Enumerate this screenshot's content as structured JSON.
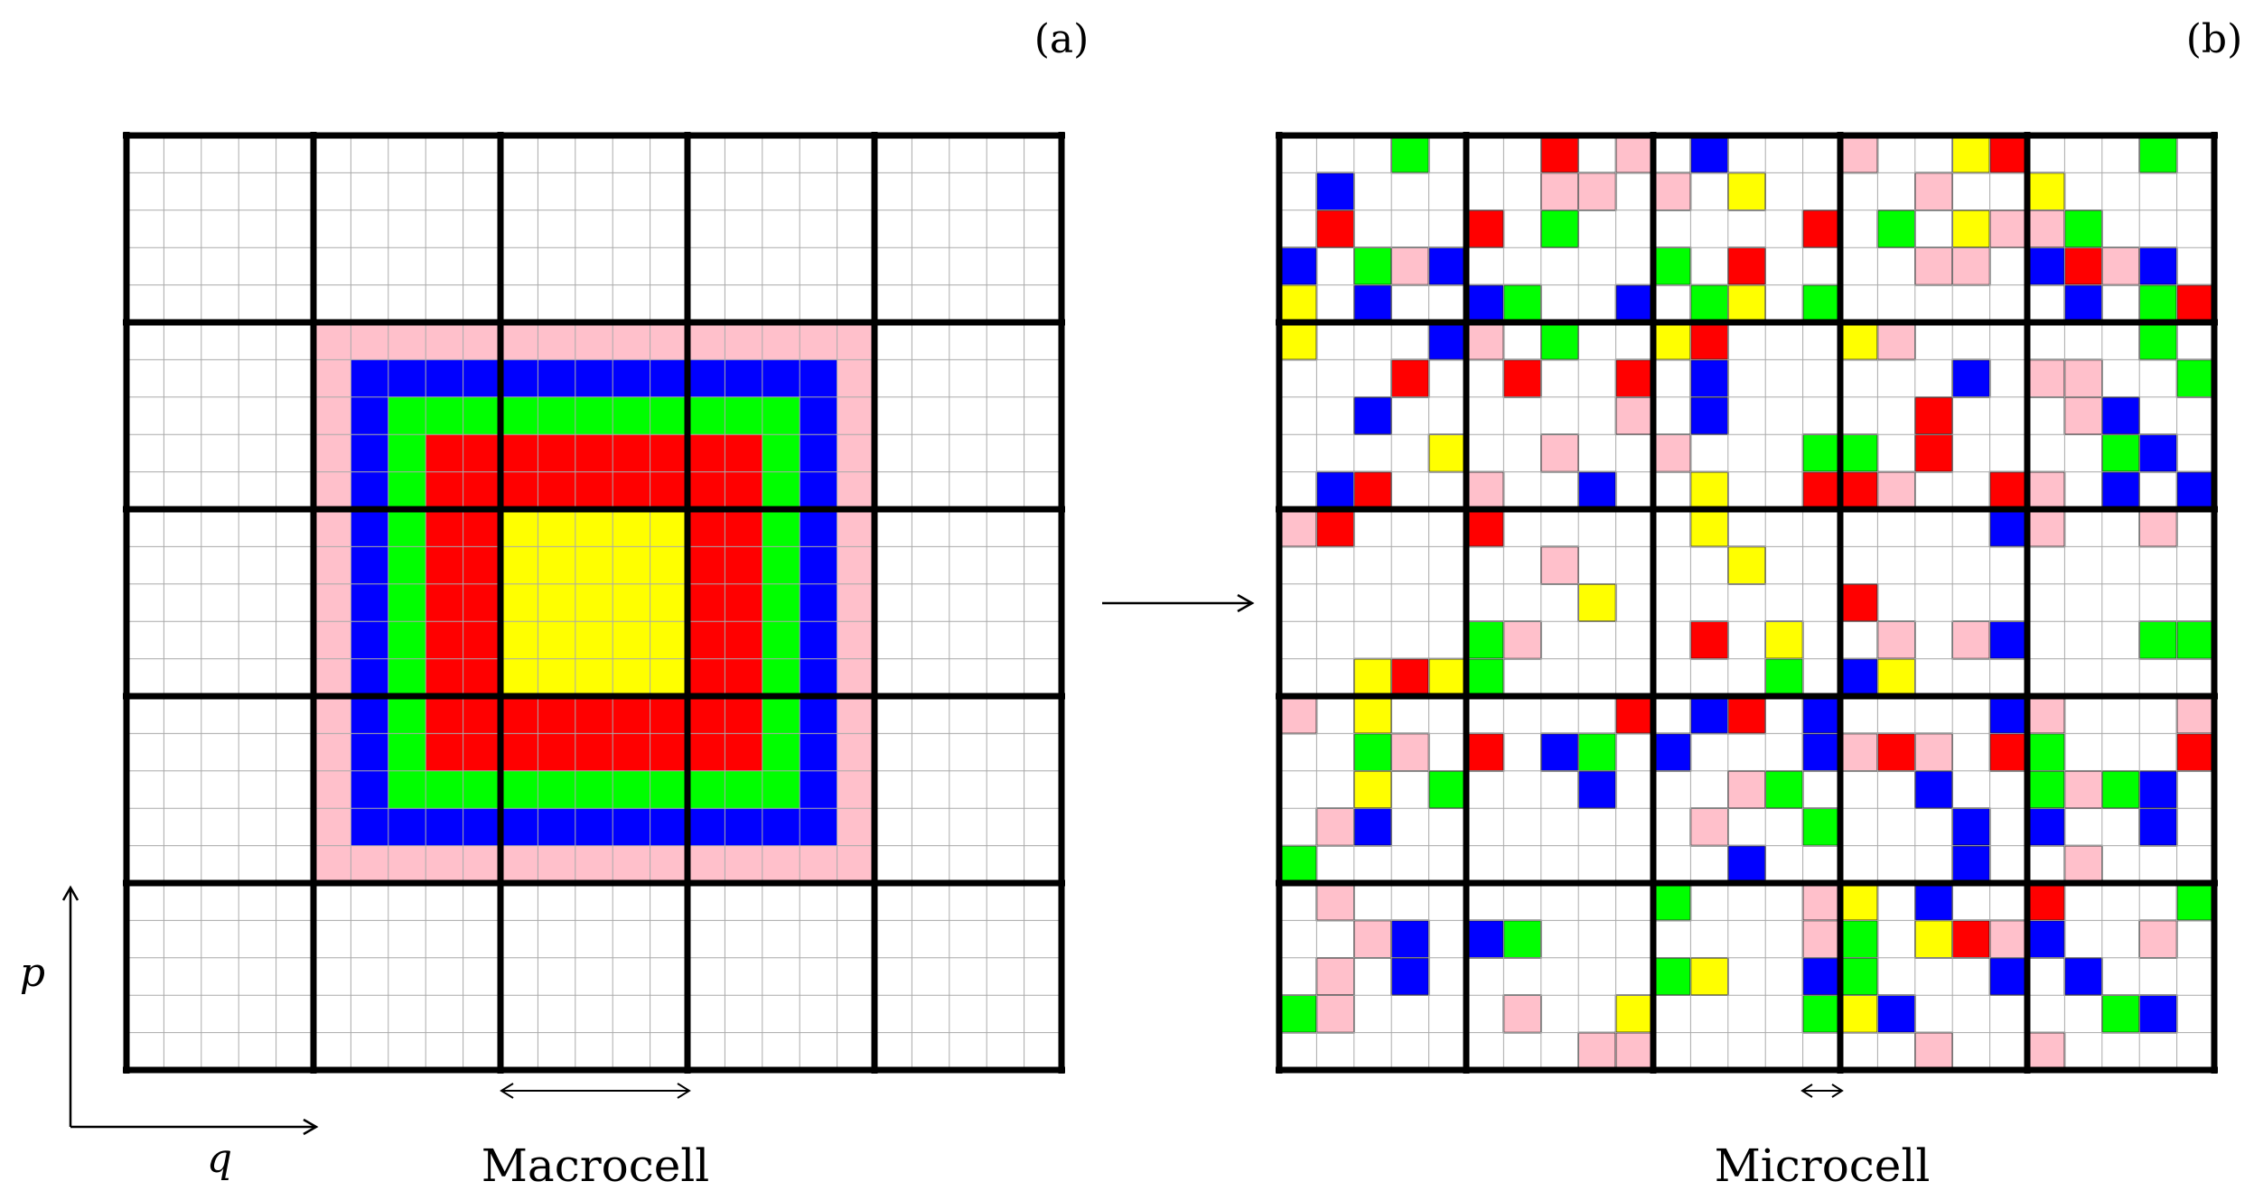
{
  "panel_a": {
    "label": "(a)",
    "caption": "Macrocell",
    "axis_p": "p",
    "axis_q": "q",
    "grid_cells": 25,
    "macro_cells": 5,
    "layers": [
      {
        "color": "pink",
        "from": 5,
        "to": 19
      },
      {
        "color": "blue",
        "from": 6,
        "to": 18
      },
      {
        "color": "green",
        "from": 7,
        "to": 17
      },
      {
        "color": "red",
        "from": 8,
        "to": 16
      },
      {
        "color": "yellow",
        "from": 10,
        "to": 14
      }
    ]
  },
  "panel_b": {
    "label": "(b)",
    "caption": "Microcell",
    "grid_cells": 25,
    "macro_cells": 5,
    "cells": [
      [
        0,
        3,
        "green"
      ],
      [
        1,
        1,
        "blue"
      ],
      [
        2,
        1,
        "red"
      ],
      [
        3,
        0,
        "blue"
      ],
      [
        3,
        2,
        "green"
      ],
      [
        3,
        3,
        "pink"
      ],
      [
        3,
        4,
        "blue"
      ],
      [
        4,
        0,
        "yellow"
      ],
      [
        4,
        2,
        "blue"
      ],
      [
        0,
        7,
        "red"
      ],
      [
        0,
        9,
        "pink"
      ],
      [
        1,
        7,
        "pink"
      ],
      [
        1,
        8,
        "pink"
      ],
      [
        2,
        5,
        "red"
      ],
      [
        2,
        7,
        "green"
      ],
      [
        4,
        5,
        "blue"
      ],
      [
        4,
        6,
        "green"
      ],
      [
        4,
        9,
        "blue"
      ],
      [
        0,
        11,
        "blue"
      ],
      [
        1,
        10,
        "pink"
      ],
      [
        1,
        12,
        "yellow"
      ],
      [
        2,
        14,
        "red"
      ],
      [
        3,
        10,
        "green"
      ],
      [
        3,
        12,
        "red"
      ],
      [
        4,
        11,
        "green"
      ],
      [
        4,
        12,
        "yellow"
      ],
      [
        4,
        14,
        "green"
      ],
      [
        0,
        15,
        "pink"
      ],
      [
        0,
        18,
        "yellow"
      ],
      [
        0,
        19,
        "red"
      ],
      [
        1,
        17,
        "pink"
      ],
      [
        2,
        16,
        "green"
      ],
      [
        2,
        18,
        "yellow"
      ],
      [
        2,
        19,
        "pink"
      ],
      [
        3,
        17,
        "pink"
      ],
      [
        3,
        18,
        "pink"
      ],
      [
        0,
        23,
        "green"
      ],
      [
        1,
        20,
        "yellow"
      ],
      [
        2,
        20,
        "pink"
      ],
      [
        2,
        21,
        "green"
      ],
      [
        3,
        20,
        "blue"
      ],
      [
        3,
        21,
        "red"
      ],
      [
        3,
        22,
        "pink"
      ],
      [
        3,
        23,
        "blue"
      ],
      [
        4,
        21,
        "blue"
      ],
      [
        4,
        23,
        "green"
      ],
      [
        4,
        24,
        "red"
      ],
      [
        5,
        0,
        "yellow"
      ],
      [
        5,
        4,
        "blue"
      ],
      [
        6,
        3,
        "red"
      ],
      [
        7,
        2,
        "blue"
      ],
      [
        8,
        4,
        "yellow"
      ],
      [
        9,
        1,
        "blue"
      ],
      [
        9,
        2,
        "red"
      ],
      [
        5,
        5,
        "pink"
      ],
      [
        5,
        7,
        "green"
      ],
      [
        6,
        6,
        "red"
      ],
      [
        6,
        9,
        "red"
      ],
      [
        7,
        9,
        "pink"
      ],
      [
        8,
        7,
        "pink"
      ],
      [
        9,
        5,
        "pink"
      ],
      [
        9,
        8,
        "blue"
      ],
      [
        5,
        10,
        "yellow"
      ],
      [
        5,
        11,
        "red"
      ],
      [
        6,
        11,
        "blue"
      ],
      [
        7,
        11,
        "blue"
      ],
      [
        8,
        10,
        "pink"
      ],
      [
        8,
        14,
        "green"
      ],
      [
        9,
        11,
        "yellow"
      ],
      [
        9,
        14,
        "red"
      ],
      [
        5,
        15,
        "yellow"
      ],
      [
        5,
        16,
        "pink"
      ],
      [
        6,
        18,
        "blue"
      ],
      [
        7,
        17,
        "red"
      ],
      [
        8,
        15,
        "green"
      ],
      [
        8,
        17,
        "red"
      ],
      [
        9,
        15,
        "red"
      ],
      [
        9,
        16,
        "pink"
      ],
      [
        9,
        19,
        "red"
      ],
      [
        5,
        23,
        "green"
      ],
      [
        6,
        20,
        "pink"
      ],
      [
        6,
        21,
        "pink"
      ],
      [
        6,
        24,
        "green"
      ],
      [
        7,
        21,
        "pink"
      ],
      [
        7,
        22,
        "blue"
      ],
      [
        8,
        22,
        "green"
      ],
      [
        8,
        23,
        "blue"
      ],
      [
        9,
        20,
        "pink"
      ],
      [
        9,
        22,
        "blue"
      ],
      [
        9,
        24,
        "blue"
      ],
      [
        10,
        0,
        "pink"
      ],
      [
        10,
        1,
        "red"
      ],
      [
        14,
        2,
        "yellow"
      ],
      [
        14,
        3,
        "red"
      ],
      [
        14,
        4,
        "yellow"
      ],
      [
        10,
        5,
        "red"
      ],
      [
        11,
        7,
        "pink"
      ],
      [
        12,
        8,
        "yellow"
      ],
      [
        13,
        5,
        "green"
      ],
      [
        13,
        6,
        "pink"
      ],
      [
        14,
        5,
        "green"
      ],
      [
        10,
        11,
        "yellow"
      ],
      [
        11,
        12,
        "yellow"
      ],
      [
        13,
        11,
        "red"
      ],
      [
        13,
        13,
        "yellow"
      ],
      [
        14,
        13,
        "green"
      ],
      [
        10,
        19,
        "blue"
      ],
      [
        12,
        15,
        "red"
      ],
      [
        13,
        16,
        "pink"
      ],
      [
        13,
        18,
        "pink"
      ],
      [
        13,
        19,
        "blue"
      ],
      [
        14,
        15,
        "blue"
      ],
      [
        14,
        16,
        "yellow"
      ],
      [
        10,
        20,
        "pink"
      ],
      [
        10,
        23,
        "pink"
      ],
      [
        13,
        23,
        "green"
      ],
      [
        13,
        24,
        "green"
      ],
      [
        15,
        0,
        "pink"
      ],
      [
        15,
        2,
        "yellow"
      ],
      [
        16,
        2,
        "green"
      ],
      [
        16,
        3,
        "pink"
      ],
      [
        17,
        2,
        "yellow"
      ],
      [
        17,
        4,
        "green"
      ],
      [
        18,
        1,
        "pink"
      ],
      [
        18,
        2,
        "blue"
      ],
      [
        19,
        0,
        "green"
      ],
      [
        15,
        9,
        "red"
      ],
      [
        16,
        5,
        "red"
      ],
      [
        16,
        7,
        "blue"
      ],
      [
        16,
        8,
        "green"
      ],
      [
        17,
        8,
        "blue"
      ],
      [
        15,
        11,
        "blue"
      ],
      [
        15,
        12,
        "red"
      ],
      [
        15,
        14,
        "blue"
      ],
      [
        16,
        10,
        "blue"
      ],
      [
        16,
        14,
        "blue"
      ],
      [
        17,
        12,
        "pink"
      ],
      [
        17,
        13,
        "green"
      ],
      [
        18,
        11,
        "pink"
      ],
      [
        18,
        14,
        "green"
      ],
      [
        19,
        12,
        "blue"
      ],
      [
        15,
        19,
        "blue"
      ],
      [
        15,
        20,
        "pink"
      ],
      [
        16,
        15,
        "pink"
      ],
      [
        16,
        16,
        "red"
      ],
      [
        16,
        17,
        "pink"
      ],
      [
        16,
        19,
        "red"
      ],
      [
        17,
        17,
        "blue"
      ],
      [
        18,
        18,
        "blue"
      ],
      [
        19,
        18,
        "blue"
      ],
      [
        15,
        24,
        "pink"
      ],
      [
        16,
        20,
        "green"
      ],
      [
        16,
        24,
        "red"
      ],
      [
        17,
        20,
        "green"
      ],
      [
        17,
        21,
        "pink"
      ],
      [
        17,
        22,
        "green"
      ],
      [
        17,
        23,
        "blue"
      ],
      [
        18,
        20,
        "blue"
      ],
      [
        18,
        23,
        "blue"
      ],
      [
        19,
        21,
        "pink"
      ],
      [
        20,
        1,
        "pink"
      ],
      [
        21,
        2,
        "pink"
      ],
      [
        21,
        3,
        "blue"
      ],
      [
        22,
        1,
        "pink"
      ],
      [
        22,
        3,
        "blue"
      ],
      [
        23,
        0,
        "green"
      ],
      [
        23,
        1,
        "pink"
      ],
      [
        21,
        5,
        "blue"
      ],
      [
        21,
        6,
        "green"
      ],
      [
        23,
        6,
        "pink"
      ],
      [
        24,
        8,
        "pink"
      ],
      [
        24,
        9,
        "pink"
      ],
      [
        20,
        10,
        "green"
      ],
      [
        20,
        14,
        "pink"
      ],
      [
        21,
        14,
        "pink"
      ],
      [
        22,
        10,
        "green"
      ],
      [
        22,
        11,
        "yellow"
      ],
      [
        22,
        14,
        "blue"
      ],
      [
        23,
        9,
        "yellow"
      ],
      [
        23,
        14,
        "green"
      ],
      [
        24,
        9,
        "pink"
      ],
      [
        20,
        15,
        "yellow"
      ],
      [
        20,
        17,
        "blue"
      ],
      [
        21,
        15,
        "green"
      ],
      [
        21,
        17,
        "yellow"
      ],
      [
        21,
        18,
        "red"
      ],
      [
        21,
        19,
        "pink"
      ],
      [
        22,
        15,
        "green"
      ],
      [
        22,
        19,
        "blue"
      ],
      [
        23,
        15,
        "yellow"
      ],
      [
        23,
        16,
        "blue"
      ],
      [
        24,
        17,
        "pink"
      ],
      [
        20,
        20,
        "red"
      ],
      [
        20,
        24,
        "green"
      ],
      [
        21,
        20,
        "blue"
      ],
      [
        21,
        23,
        "pink"
      ],
      [
        22,
        21,
        "blue"
      ],
      [
        23,
        22,
        "green"
      ],
      [
        23,
        23,
        "blue"
      ],
      [
        24,
        20,
        "pink"
      ]
    ]
  },
  "colors": {
    "pink": "#ffc0cb",
    "blue": "#0000ff",
    "green": "#00ff00",
    "red": "#ff0000",
    "yellow": "#ffff00",
    "thin_line": "#aaaaaa",
    "thick_line": "#000000"
  }
}
